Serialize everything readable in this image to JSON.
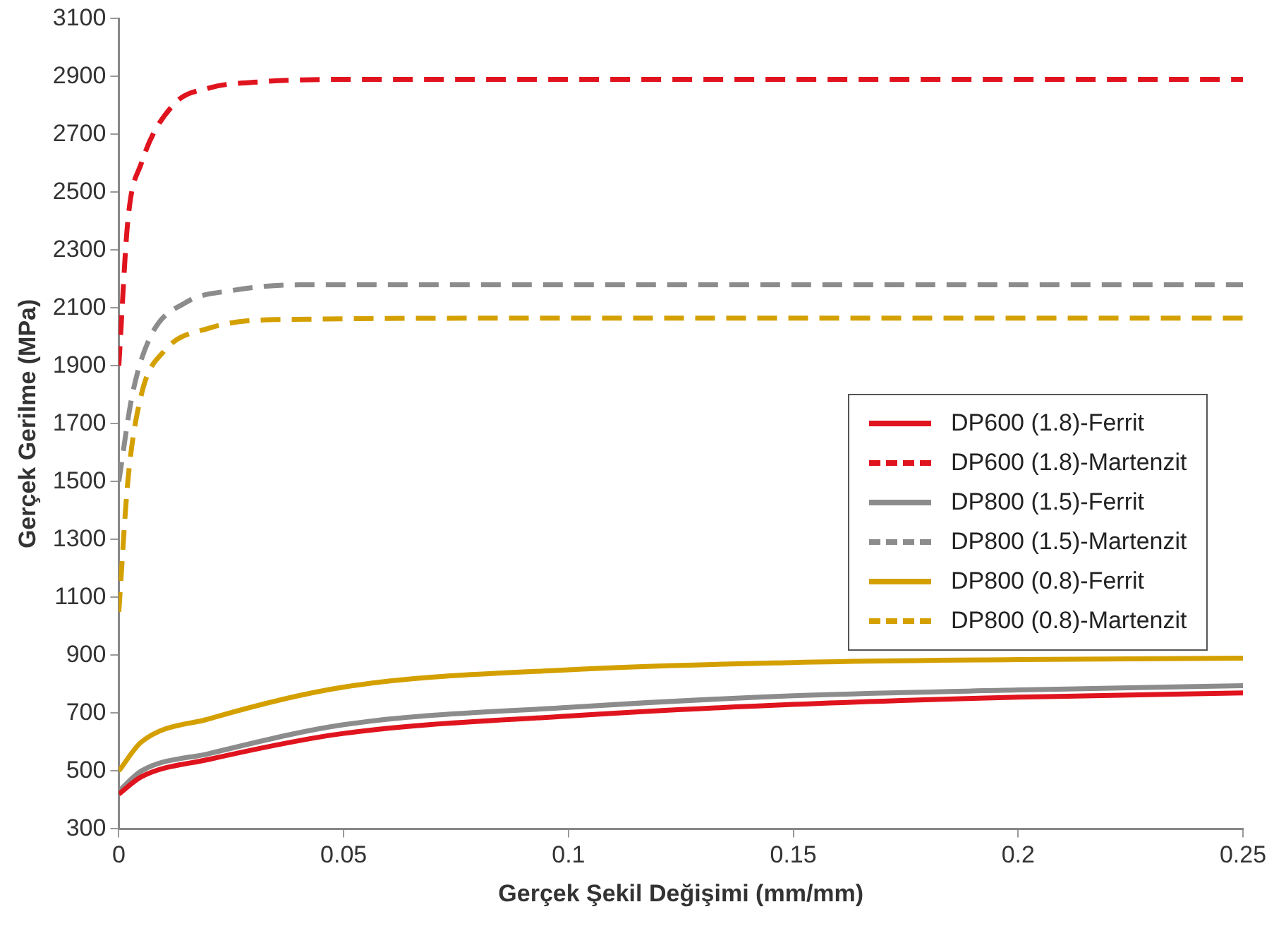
{
  "chart_data": {
    "type": "line",
    "xlabel": "Gerçek Şekil Değişimi (mm/mm)",
    "ylabel": "Gerçek Gerilme (MPa)",
    "xlim": [
      0,
      0.25
    ],
    "xticks": [
      0,
      0.05,
      0.1,
      0.15,
      0.2,
      0.25
    ],
    "ylim": [
      300,
      3100
    ],
    "yticks": [
      300,
      500,
      700,
      900,
      1100,
      1300,
      1500,
      1700,
      1900,
      2100,
      2300,
      2500,
      2700,
      2900,
      3100
    ],
    "grid": false,
    "legend": "right",
    "marker": "none",
    "series": [
      {
        "name": "DP600 (1.8)-Ferrit",
        "color": "#e0141e",
        "line_style": "solid",
        "x": [
          0,
          0.005,
          0.02,
          0.05,
          0.1,
          0.15,
          0.2,
          0.25
        ],
        "values": [
          420,
          480,
          540,
          630,
          690,
          730,
          755,
          770
        ]
      },
      {
        "name": "DP600 (1.8)-Martenzit",
        "color": "#e0141e",
        "line_style": "dashed",
        "x": [
          0,
          0.002,
          0.005,
          0.012,
          0.02,
          0.03,
          0.05,
          0.1,
          0.25
        ],
        "values": [
          1900,
          2400,
          2600,
          2800,
          2860,
          2880,
          2890,
          2890,
          2890
        ]
      },
      {
        "name": "DP800 (1.5)-Ferrit",
        "color": "#8c8c8c",
        "line_style": "solid",
        "x": [
          0,
          0.005,
          0.02,
          0.05,
          0.1,
          0.15,
          0.2,
          0.25
        ],
        "values": [
          430,
          500,
          560,
          660,
          720,
          760,
          780,
          795
        ]
      },
      {
        "name": "DP800 (1.5)-Martenzit",
        "color": "#8c8c8c",
        "line_style": "dashed",
        "x": [
          0,
          0.003,
          0.007,
          0.015,
          0.025,
          0.04,
          0.1,
          0.25
        ],
        "values": [
          1500,
          1800,
          2000,
          2120,
          2160,
          2180,
          2180,
          2180
        ]
      },
      {
        "name": "DP800 (0.8)-Ferrit",
        "color": "#d4a000",
        "line_style": "solid",
        "x": [
          0,
          0.005,
          0.02,
          0.05,
          0.1,
          0.15,
          0.2,
          0.25
        ],
        "values": [
          500,
          600,
          680,
          790,
          850,
          875,
          885,
          890
        ]
      },
      {
        "name": "DP800 (0.8)-Martenzit",
        "color": "#d4a000",
        "line_style": "dashed",
        "x": [
          0,
          0.002,
          0.005,
          0.01,
          0.02,
          0.035,
          0.1,
          0.25
        ],
        "values": [
          1050,
          1500,
          1800,
          1950,
          2030,
          2060,
          2065,
          2065
        ]
      }
    ]
  }
}
